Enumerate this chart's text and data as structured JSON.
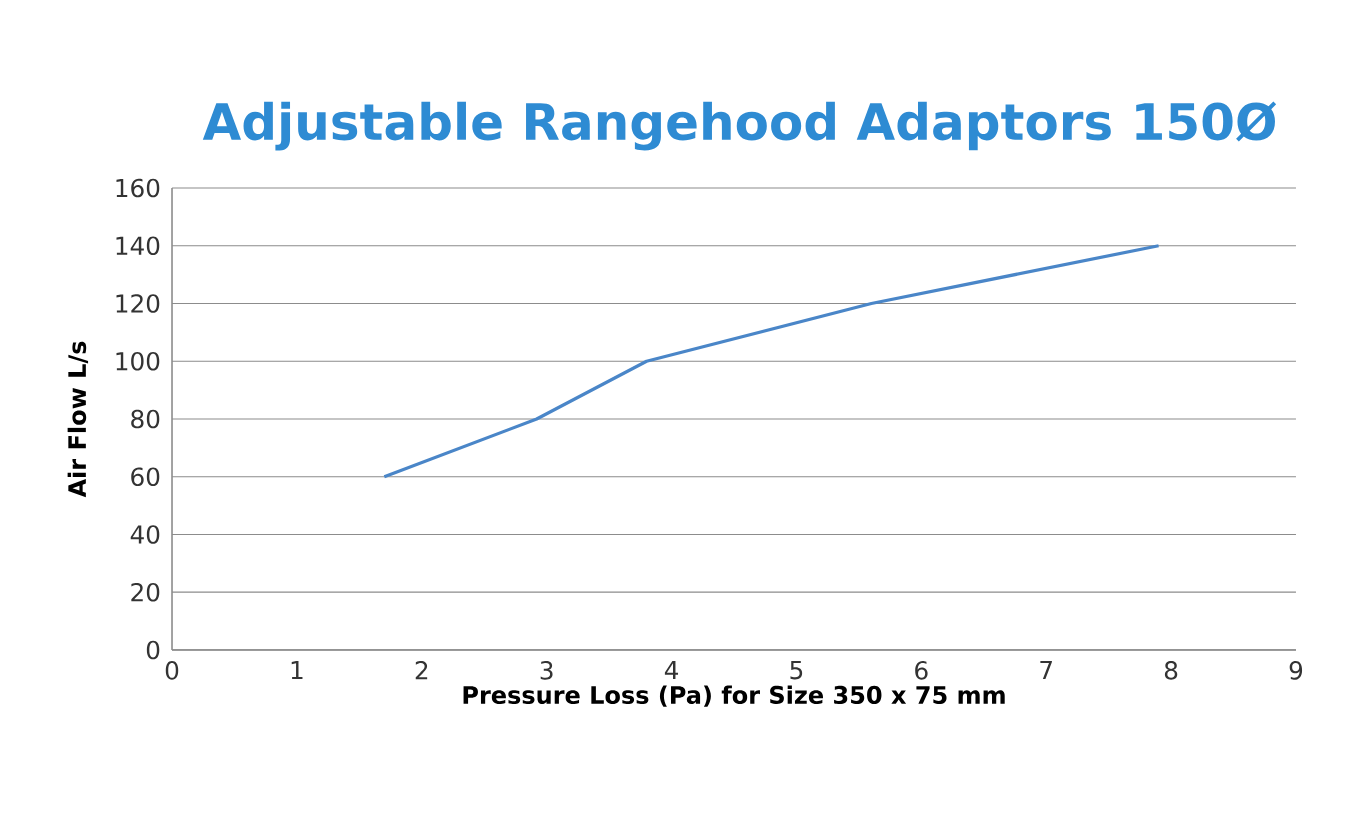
{
  "chart_data": {
    "type": "line",
    "title": "Adjustable Rangehood Adaptors 150Ø",
    "xlabel": "Pressure Loss (Pa) for Size 350 x 75 mm",
    "ylabel": "Air Flow L/s",
    "x": [
      1.7,
      2.92,
      3.8,
      5.6,
      7.9
    ],
    "series": [
      {
        "color": "#4a86c8",
        "values": [
          60,
          80,
          100,
          120,
          140
        ]
      }
    ],
    "xlim": [
      0,
      9
    ],
    "xticks": [
      0,
      1,
      2,
      3,
      4,
      5,
      6,
      7,
      8,
      9
    ],
    "ylim": [
      0,
      160
    ],
    "yticks": [
      0,
      20,
      40,
      60,
      80,
      100,
      120,
      140,
      160
    ],
    "grid": "y",
    "legend": false,
    "marker": "none",
    "line_style": "solid"
  }
}
